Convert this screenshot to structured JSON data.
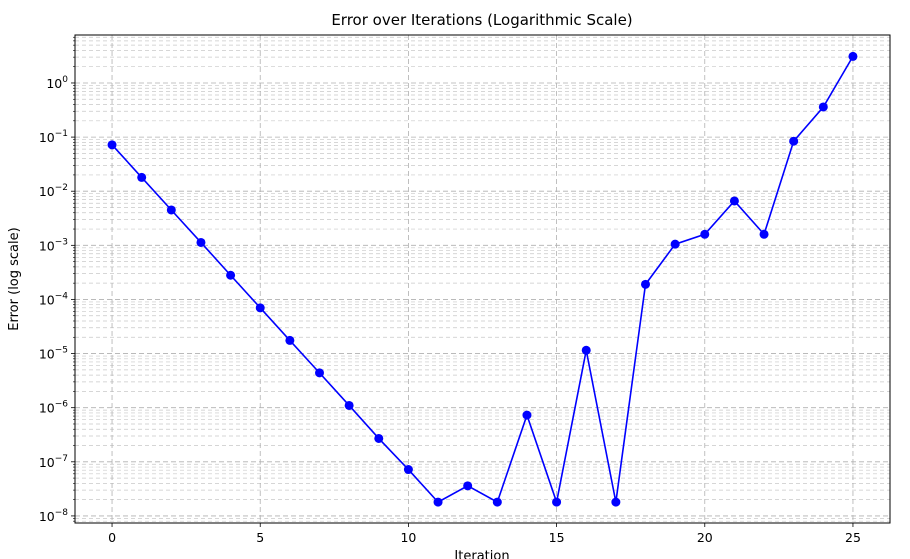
{
  "chart_data": {
    "type": "line",
    "title": "Error over Iterations (Logarithmic Scale)",
    "xlabel": "Iteration",
    "ylabel": "Error (log scale)",
    "xlim": [
      -1.25,
      26.25
    ],
    "ylim": [
      7.4e-09,
      7.7
    ],
    "yscale": "log",
    "grid": true,
    "grid_style": "dashed",
    "marker": "circle",
    "line_color": "#0000ff",
    "x_ticks": [
      0,
      5,
      10,
      15,
      20,
      25
    ],
    "x_tick_labels": [
      "0",
      "5",
      "10",
      "15",
      "20",
      "25"
    ],
    "y_ticks": [
      1e-08,
      1e-07,
      1e-06,
      1e-05,
      0.0001,
      0.001,
      0.01,
      0.1,
      1
    ],
    "y_tick_labels": [
      {
        "base": "10",
        "exp": "−8"
      },
      {
        "base": "10",
        "exp": "−7"
      },
      {
        "base": "10",
        "exp": "−6"
      },
      {
        "base": "10",
        "exp": "−5"
      },
      {
        "base": "10",
        "exp": "−4"
      },
      {
        "base": "10",
        "exp": "−3"
      },
      {
        "base": "10",
        "exp": "−2"
      },
      {
        "base": "10",
        "exp": "−1"
      },
      {
        "base": "10",
        "exp": "0"
      }
    ],
    "series": [
      {
        "x": [
          0,
          1,
          2,
          3,
          4,
          5,
          6,
          7,
          8,
          9,
          10,
          11,
          12,
          13,
          14,
          15,
          16,
          17,
          18,
          19,
          20,
          21,
          22,
          23,
          24,
          25
        ],
        "y": [
          0.072,
          0.018,
          0.0045,
          0.00113,
          0.00028,
          7e-05,
          1.75e-05,
          4.4e-06,
          1.1e-06,
          2.7e-07,
          7.2e-08,
          1.8e-08,
          3.6e-08,
          1.8e-08,
          7.3e-07,
          1.8e-08,
          1.15e-05,
          1.8e-08,
          0.00019,
          0.00105,
          0.0016,
          0.0066,
          0.0016,
          0.084,
          0.36,
          3.1
        ]
      }
    ]
  }
}
